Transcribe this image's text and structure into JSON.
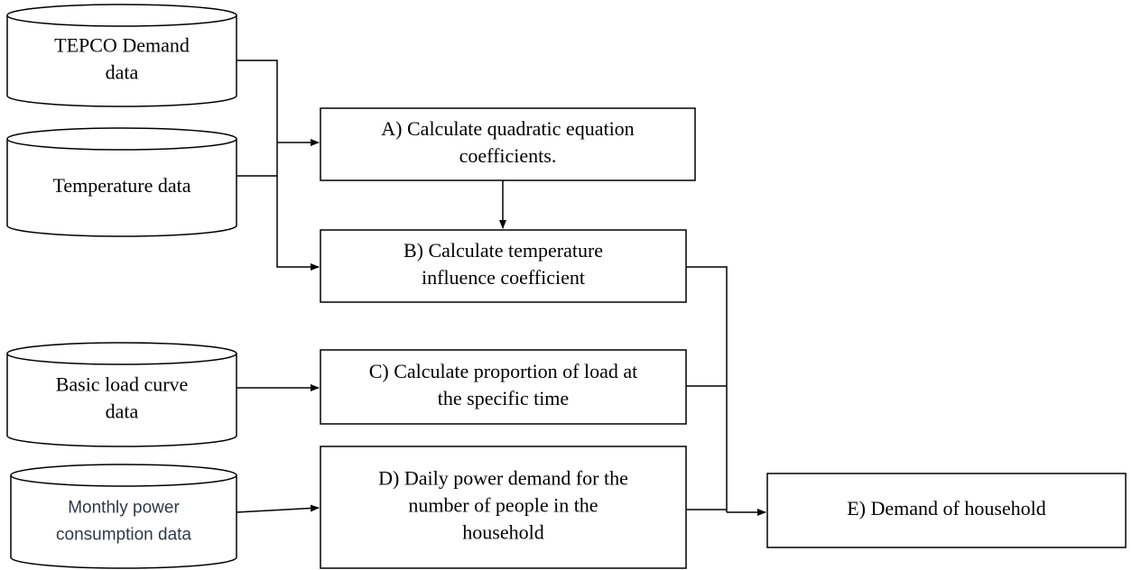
{
  "sources": [
    {
      "lines": [
        "TEPCO Demand",
        "data"
      ]
    },
    {
      "lines": [
        "Temperature data"
      ]
    },
    {
      "lines": [
        "Basic load curve",
        "data"
      ]
    },
    {
      "lines": [
        "Monthly power",
        "consumption data"
      ]
    }
  ],
  "steps": [
    {
      "lines": [
        "A) Calculate quadratic equation",
        "coefficients."
      ]
    },
    {
      "lines": [
        "B) Calculate temperature",
        "influence coefficient"
      ]
    },
    {
      "lines": [
        "C) Calculate proportion of load at",
        "the specific time"
      ]
    },
    {
      "lines": [
        "D) Daily power demand for the",
        "number of people in the",
        "household"
      ]
    },
    {
      "lines": [
        "E) Demand of household"
      ]
    }
  ]
}
